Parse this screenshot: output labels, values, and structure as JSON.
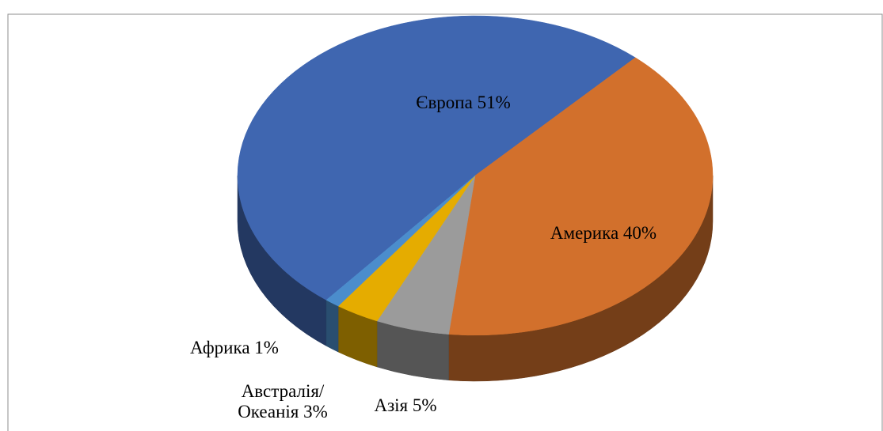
{
  "chart_data": {
    "type": "pie",
    "categories": [
      "Європа",
      "Америка",
      "Азія",
      "Австралія/ Океанія",
      "Африка"
    ],
    "values": [
      51,
      40,
      5,
      3,
      1
    ],
    "value_labels": [
      "51%",
      "40%",
      "5%",
      "3%",
      "1%"
    ],
    "colors": [
      "#3f66b0",
      "#d2702c",
      "#9b9b9b",
      "#e5ac00",
      "#4b8dcc"
    ]
  }
}
